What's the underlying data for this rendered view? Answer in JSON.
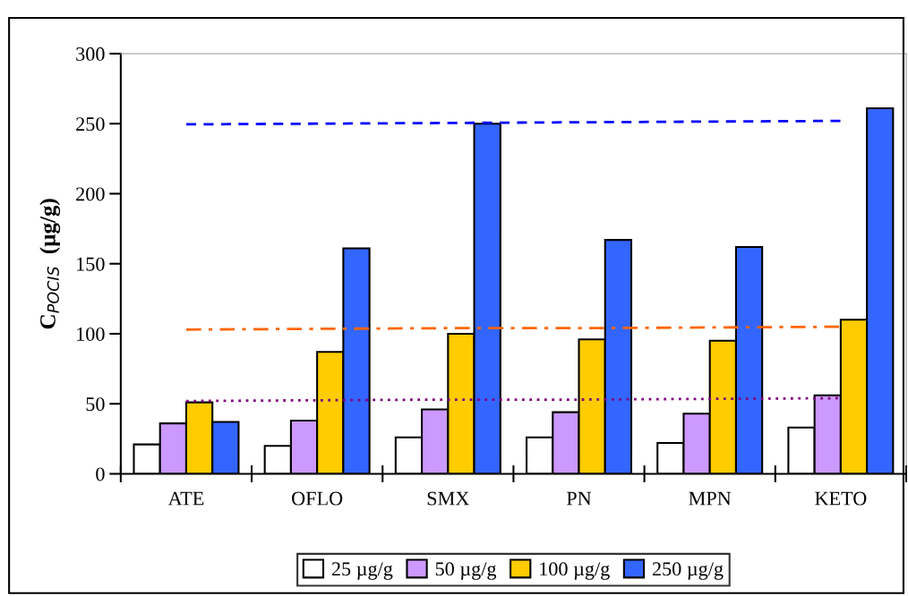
{
  "chart_data": {
    "type": "bar",
    "ylabel": "C$_{POCIS}$  (µg/g)",
    "categories": [
      "ATE",
      "OFLO",
      "SMX",
      "PN",
      "MPN",
      "KETO"
    ],
    "series": [
      {
        "name": "25 µg/g",
        "color": "#ffffff",
        "values": [
          21,
          20,
          26,
          26,
          22,
          33
        ]
      },
      {
        "name": "50 µg/g",
        "color": "#cc99ff",
        "values": [
          36,
          38,
          46,
          44,
          43,
          56
        ]
      },
      {
        "name": "100 µg/g",
        "color": "#ffcc00",
        "values": [
          51,
          87,
          100,
          96,
          95,
          110
        ]
      },
      {
        "name": "250 µg/g",
        "color": "#3366ff",
        "values": [
          37,
          161,
          250,
          167,
          162,
          261
        ]
      },
      {
        "type": "line",
        "color": "#0000ff",
        "line_style": "dashed",
        "values": [
          249.5,
          250,
          250.5,
          251,
          251.5,
          252
        ]
      },
      {
        "type": "line",
        "color": "#ff6600",
        "line_style": "dashdot",
        "values": [
          103,
          103.5,
          104,
          104,
          104.5,
          105
        ]
      },
      {
        "type": "line",
        "color": "#800080",
        "line_style": "dotted",
        "values": [
          52,
          52.5,
          53,
          53,
          53.5,
          54
        ]
      }
    ],
    "ylim": [
      0,
      300
    ],
    "yticks": [
      0,
      50,
      100,
      150,
      200,
      250,
      300
    ],
    "grid": false,
    "legend": "bottom"
  }
}
